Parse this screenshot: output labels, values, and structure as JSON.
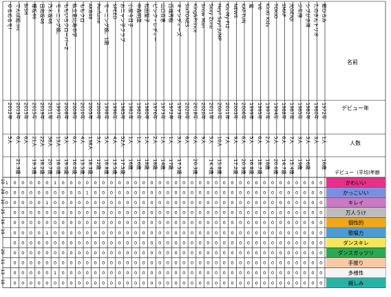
{
  "headers": {
    "name": "名前",
    "debut_year": "デビュー年",
    "members": "人数",
    "debut_age": "デビュー（平均)年齢"
  },
  "rows": [
    {
      "name": "ゆるめるモ!",
      "year": "2012年",
      "members": "5人",
      "age": "",
      "scores": [
        "1",
        "0",
        "0",
        "",
        "",
        "",
        "",
        "",
        "",
        "",
        ""
      ]
    },
    {
      "name": "でんぱ組.inc",
      "year": "2013年",
      "members": "6人",
      "age": "21.3歳",
      "scores": [
        "0",
        "0",
        "0",
        "0",
        "0",
        "0",
        "0",
        "0",
        "0",
        "0",
        "0"
      ]
    },
    {
      "name": "BiSH",
      "year": "2015年",
      "members": "6人",
      "age": "",
      "scores": [
        "0",
        "0",
        "0",
        "0",
        "0",
        "0",
        "0",
        "0",
        "0",
        "0",
        "0"
      ]
    },
    {
      "name": "欅坂46",
      "year": "2015年",
      "members": "21人",
      "age": "19.3歳",
      "scores": [
        "0",
        "0",
        "0",
        "0",
        "0",
        "0",
        "0",
        "0",
        "0",
        "0",
        "0"
      ]
    },
    {
      "name": "日向坂46",
      "year": "2019年",
      "members": "22人",
      "age": "18.2歳",
      "scores": [
        "0",
        "0",
        "0",
        "0",
        "0",
        "0",
        "0",
        "0",
        "0",
        "0",
        "0"
      ]
    },
    {
      "name": "乃木坂46",
      "year": "2011年",
      "members": "36人",
      "age": "20.7歳",
      "scores": [
        "0",
        "0",
        "1",
        "0",
        "0",
        "1",
        "0",
        "0",
        "0",
        "0",
        "0"
      ]
    },
    {
      "name": "モーニング娘。",
      "year": "1997年",
      "members": "13人",
      "age": "18.0歳",
      "scores": [
        "1",
        "0",
        "0",
        "0",
        "0",
        "0",
        "0",
        "0",
        "0",
        "1",
        "0"
      ]
    },
    {
      "name": "ももいろクローバーZ",
      "year": "2008年",
      "members": "5人",
      "age": "19.0歳",
      "scores": [
        "0",
        "0",
        "0",
        "0",
        "0",
        "0",
        "0",
        "0",
        "0",
        "0",
        "0"
      ]
    },
    {
      "name": "私立恵比寿中学",
      "year": "2009年",
      "members": "6人",
      "age": "16.0歳",
      "scores": [
        "0",
        "0",
        "0",
        "0",
        "0",
        "0",
        "0",
        "0",
        "0",
        "0",
        "0"
      ]
    },
    {
      "name": "ももクロ",
      "year": "2010年",
      "members": "4人",
      "age": "13.5歳",
      "scores": [
        "0",
        "0",
        "0",
        "0",
        "0",
        "0",
        "0",
        "0",
        "0",
        "0",
        "0"
      ]
    },
    {
      "name": "AKB48",
      "year": "2005年",
      "members": "138人",
      "age": "18.3歳",
      "scores": [
        "0",
        "1",
        "0",
        "0",
        "0",
        "0",
        "0",
        "0",
        "0",
        "0",
        "0"
      ]
    },
    {
      "name": "Perfume",
      "year": "2000年",
      "members": "3人",
      "age": "12歳",
      "scores": [
        "0",
        "0",
        "0",
        "0",
        "0",
        "0",
        "0",
        "0",
        "0",
        "0",
        "0"
      ]
    },
    {
      "name": "モーニング娘。1期",
      "year": "1998年",
      "members": "5人",
      "age": "18.8歳",
      "scores": [
        "0",
        "0",
        "0",
        "0",
        "0",
        "0",
        "0",
        "0",
        "0",
        "0",
        "0"
      ]
    },
    {
      "name": "SPEED",
      "year": "1996年",
      "members": "4人",
      "age": "13.5歳",
      "scores": [
        "0",
        "0",
        "0",
        "0",
        "0",
        "0",
        "0",
        "0",
        "0",
        "0",
        "0"
      ]
    },
    {
      "name": "おニャン子クラブ",
      "year": "1985年",
      "members": "52人",
      "age": "17.5歳",
      "scores": [
        "0",
        "0",
        "0",
        "0",
        "0",
        "0",
        "0",
        "0",
        "0",
        "0",
        "0"
      ]
    },
    {
      "name": "小泉今日子",
      "year": "1982年",
      "members": "1人",
      "age": "16歳",
      "scores": [
        "0",
        "0",
        "0",
        "0",
        "0",
        "0",
        "0",
        "0",
        "0",
        "0",
        "0"
      ]
    },
    {
      "name": "中森明菜",
      "year": "1982年",
      "members": "1人",
      "age": "16歳",
      "scores": [
        "0",
        "0",
        "0",
        "0",
        "0",
        "0",
        "0",
        "0",
        "0",
        "0",
        "0"
      ]
    },
    {
      "name": "松田聖子",
      "year": "1980年",
      "members": "1人",
      "age": "18歳",
      "scores": [
        "0",
        "0",
        "0",
        "0",
        "0",
        "0",
        "0",
        "0",
        "0",
        "0",
        "0"
      ]
    },
    {
      "name": "ピンク・レディー",
      "year": "1976年",
      "members": "2人",
      "age": "18歳",
      "scores": [
        "0",
        "0",
        "0",
        "0",
        "0",
        "0",
        "0",
        "0",
        "0",
        "0",
        "0"
      ]
    },
    {
      "name": "山口百恵",
      "year": "1973年",
      "members": "1人",
      "age": "14歳",
      "scores": [
        "0",
        "0",
        "0",
        "0",
        "0",
        "0",
        "0",
        "0",
        "0",
        "0",
        "0"
      ]
    },
    {
      "name": "西城秀樹",
      "year": "1972年",
      "members": "1人",
      "age": "17歳",
      "scores": [
        "0",
        "0",
        "0",
        "0",
        "0",
        "0",
        "0",
        "0",
        "0",
        "0",
        "0"
      ]
    },
    {
      "name": "キャンディーズ",
      "year": "1973年",
      "members": "3人",
      "age": "17.5歳",
      "scores": [
        "0",
        "0",
        "0",
        "0",
        "0",
        "0",
        "0",
        "0",
        "0",
        "0",
        "0"
      ]
    },
    {
      "name": "SixTONES",
      "year": "2020年",
      "members": "6人",
      "age": "",
      "scores": [
        "0",
        "0",
        "0",
        "0",
        "0",
        "0",
        "0",
        "0",
        "0",
        "0",
        "0"
      ]
    },
    {
      "name": "King&Prince",
      "year": "2018年",
      "members": "6人",
      "age": "20.3歳",
      "scores": [
        "0",
        "0",
        "0",
        "0",
        "0",
        "0",
        "0",
        "0",
        "0",
        "0",
        "0"
      ]
    },
    {
      "name": "Snow Man",
      "year": "2020年",
      "members": "9人",
      "age": "",
      "scores": [
        "0",
        "0",
        "0",
        "0",
        "0",
        "0",
        "0",
        "0",
        "0",
        "0",
        "0"
      ]
    },
    {
      "name": "Sexy Zone",
      "year": "2011年",
      "members": "5人",
      "age": "14.4歳",
      "scores": [
        "0",
        "0",
        "0",
        "0",
        "0",
        "0",
        "0",
        "0",
        "0",
        "0",
        "0"
      ]
    },
    {
      "name": "Hey! Say! JUMP",
      "year": "2007年",
      "members": "10人",
      "age": "15.8歳",
      "scores": [
        "0",
        "0",
        "0",
        "0",
        "0",
        "0",
        "0",
        "0",
        "0",
        "0",
        "0"
      ]
    },
    {
      "name": "Kis-My-Ft2",
      "year": "2011年",
      "members": "7人",
      "age": "",
      "scores": [
        "0",
        "0",
        "0",
        "0",
        "0",
        "0",
        "0",
        "0",
        "0",
        "0",
        "0"
      ]
    },
    {
      "name": "NEWS",
      "year": "2003年",
      "members": "9人",
      "age": "17.2歳",
      "scores": [
        "0",
        "0",
        "0",
        "0",
        "0",
        "0",
        "0",
        "0",
        "0",
        "0",
        "0"
      ]
    },
    {
      "name": "KAT-TUN",
      "year": "2006年",
      "members": "6人",
      "age": "20.9歳",
      "scores": [
        "0",
        "0",
        "0",
        "0",
        "0",
        "0",
        "0",
        "0",
        "0",
        "0",
        "0"
      ]
    },
    {
      "name": "嵐",
      "year": "1999年",
      "members": "5人",
      "age": "16.8歳",
      "scores": [
        "0",
        "0",
        "0",
        "0",
        "0",
        "0",
        "0",
        "0",
        "0",
        "0",
        "0"
      ]
    },
    {
      "name": "V6",
      "year": "1995年",
      "members": "6人",
      "age": "18.7歳",
      "scores": [
        "0",
        "0",
        "0",
        "0",
        "0",
        "0",
        "0",
        "0",
        "0",
        "0",
        "0"
      ]
    },
    {
      "name": "KinKi Kids",
      "year": "1997年",
      "members": "2人",
      "age": "18歳",
      "scores": [
        "0",
        "0",
        "0",
        "0",
        "0",
        "0",
        "0",
        "0",
        "0",
        "0",
        "0"
      ]
    },
    {
      "name": "TOKIO",
      "year": "1994年",
      "members": "5人",
      "age": "20.6歳",
      "scores": [
        "0",
        "0",
        "0",
        "0",
        "0",
        "0",
        "0",
        "0",
        "0",
        "0",
        "0"
      ]
    },
    {
      "name": "SMAP",
      "year": "1988年",
      "members": "6人",
      "age": "14.7歳",
      "scores": [
        "0",
        "0",
        "0",
        "0",
        "0",
        "0",
        "0",
        "0",
        "0",
        "0",
        "0"
      ]
    },
    {
      "name": "光GENJI",
      "year": "1987年",
      "members": "7人",
      "age": "15.4歳",
      "scores": [
        "0",
        "0",
        "0",
        "0",
        "0",
        "0",
        "0",
        "0",
        "0",
        "0",
        "0"
      ]
    },
    {
      "name": "少年隊",
      "year": "1985年",
      "members": "3人",
      "age": "19歳",
      "scores": [
        "0",
        "0",
        "0",
        "0",
        "0",
        "0",
        "0",
        "0",
        "0",
        "0",
        "0"
      ]
    },
    {
      "name": "シブがき隊",
      "year": "1982年",
      "members": "3人",
      "age": "16歳",
      "scores": [
        "0",
        "0",
        "0",
        "0",
        "0",
        "0",
        "0",
        "0",
        "0",
        "0",
        "0"
      ]
    },
    {
      "name": "たのきんトリオ",
      "year": "1980年",
      "members": "3人",
      "age": "",
      "scores": [
        "0",
        "0",
        "0",
        "0",
        "0",
        "0",
        "0",
        "0",
        "0",
        "0",
        "0"
      ]
    },
    {
      "name": "郷ひろみ",
      "year": "1972年",
      "members": "1人",
      "age": "16歳",
      "scores": [
        "0",
        "0",
        "0",
        "0",
        "0",
        "0",
        "0",
        "0",
        "0",
        "0",
        "0"
      ]
    }
  ],
  "categories": [
    {
      "label": "かわいい",
      "color": "#e8308a",
      "total": "19"
    },
    {
      "label": "かっこいい",
      "color": "#7b8fe0",
      "total": "28"
    },
    {
      "label": "キレイ",
      "color": "#c97ac2",
      "total": "10"
    },
    {
      "label": "万人うけ",
      "color": "#bcbcbc",
      "total": "25"
    },
    {
      "label": "個性的",
      "color": "#f0a818",
      "total": "16"
    },
    {
      "label": "歌唱力",
      "color": "#4a9cd6",
      "total": "19"
    },
    {
      "label": "ダンスキレ",
      "color": "#f4e65c",
      "total": ""
    },
    {
      "label": "ダンスガッツリ",
      "color": "#2aaa52",
      "total": "20"
    },
    {
      "label": "手振り",
      "color": "#f9c9a4",
      "total": "11"
    },
    {
      "label": "多様性",
      "color": "#f4f4f4",
      "total": "13"
    },
    {
      "label": "親しみ",
      "color": "#26b3a6",
      "total": "18"
    }
  ]
}
